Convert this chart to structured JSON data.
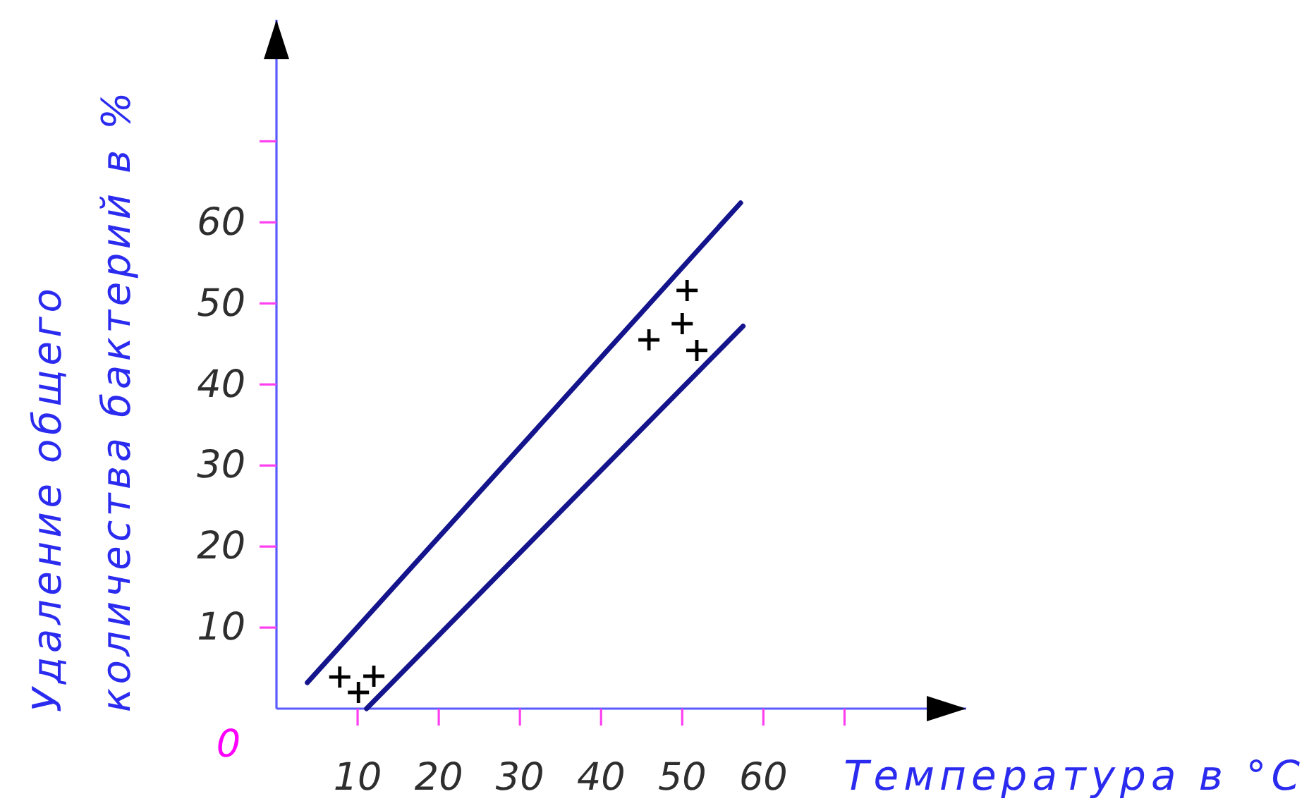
{
  "chart_data": {
    "type": "line",
    "xlabel": "Температура в °C",
    "ylabel": "Удаление общего\nколичества бактерий в %",
    "xlim": [
      0,
      85
    ],
    "ylim": [
      0,
      85
    ],
    "xticks": [
      10,
      20,
      30,
      40,
      50,
      60,
      {
        "value": 70,
        "label": null
      }
    ],
    "yticks": [
      10,
      20,
      30,
      40,
      50,
      60,
      {
        "value": 70,
        "label": null
      }
    ],
    "annotations": [
      "0"
    ],
    "series": [
      {
        "color": "#14148c",
        "x": [
          3.8,
          57.2
        ],
        "values": [
          3.2,
          62.4
        ]
      },
      {
        "color": "#14148c",
        "x": [
          11.1,
          57.5
        ],
        "values": [
          0,
          47.2
        ]
      },
      {
        "type": "scatter",
        "color": "#000000",
        "marker": "cross",
        "x": [
          7.8,
          10.1,
          12.0,
          45.9,
          50.0,
          50.6,
          51.8
        ],
        "values": [
          3.9,
          2.0,
          4.0,
          45.5,
          47.5,
          51.6,
          44.2
        ]
      }
    ]
  }
}
